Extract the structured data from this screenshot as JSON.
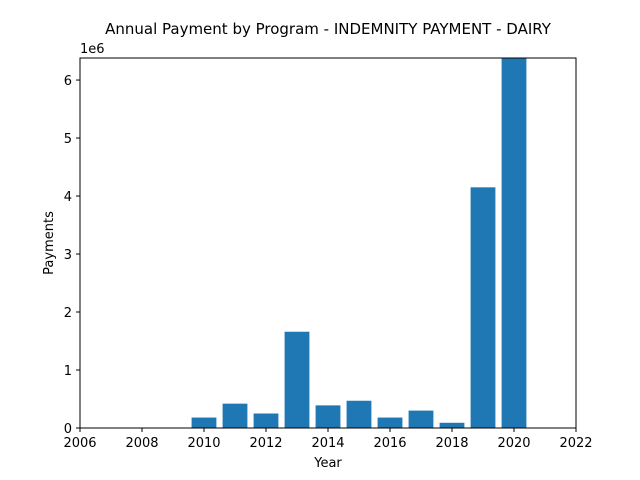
{
  "chart_data": {
    "type": "bar",
    "title": "Annual Payment by Program - INDEMNITY PAYMENT - DAIRY",
    "xlabel": "Year",
    "ylabel": "Payments",
    "y_offset_label": "1e6",
    "xlim": [
      2006,
      2022
    ],
    "ylim": [
      0,
      6.38
    ],
    "x_ticks": [
      2006,
      2008,
      2010,
      2012,
      2014,
      2016,
      2018,
      2020,
      2022
    ],
    "y_ticks": [
      0,
      1,
      2,
      3,
      4,
      5,
      6
    ],
    "y_unit_multiplier": 1000000,
    "bar_color": "#1f77b4",
    "grid": false,
    "legend": "none",
    "x": [
      2010,
      2011,
      2012,
      2013,
      2014,
      2015,
      2016,
      2017,
      2018,
      2019,
      2020
    ],
    "values": [
      0.18,
      0.42,
      0.25,
      1.66,
      0.39,
      0.47,
      0.18,
      0.3,
      0.09,
      4.15,
      6.38
    ]
  }
}
